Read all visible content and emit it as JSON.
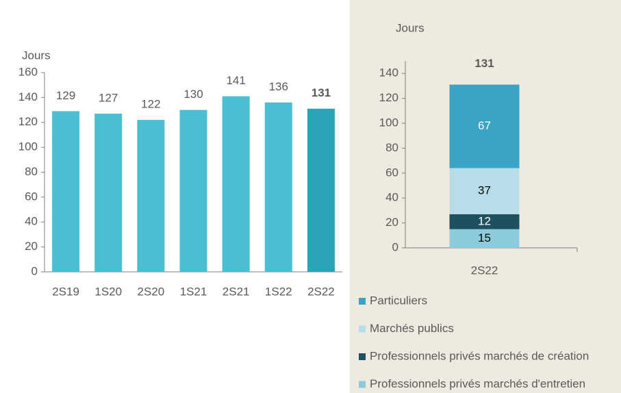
{
  "chart_data": [
    {
      "type": "bar",
      "y_label": "Jours",
      "categories": [
        "2S19",
        "1S20",
        "2S20",
        "1S21",
        "2S21",
        "1S22",
        "2S22"
      ],
      "values": [
        129,
        127,
        122,
        130,
        141,
        136,
        131
      ],
      "colors": [
        "#4bbfd2",
        "#4bbfd2",
        "#4bbfd2",
        "#4bbfd2",
        "#4bbfd2",
        "#4bbfd2",
        "#2ba5b5"
      ],
      "bold_labels": [
        false,
        false,
        false,
        false,
        false,
        false,
        true
      ],
      "ylim": [
        0,
        160
      ],
      "yticks": [
        0,
        20,
        40,
        60,
        80,
        100,
        120,
        140,
        160
      ]
    },
    {
      "type": "stacked_bar",
      "y_label": "Jours",
      "categories": [
        "2S22"
      ],
      "total": 131,
      "series": [
        {
          "name": "Professionnels privés marchés d'entretien",
          "color": "#8ccbdc",
          "label_color": "#000000",
          "values": [
            15
          ]
        },
        {
          "name": "Professionnels privés marchés de création",
          "color": "#1f5060",
          "label_color": "#ffffff",
          "values": [
            12
          ]
        },
        {
          "name": "Marchés publics",
          "color": "#b8dde8",
          "label_color": "#000000",
          "values": [
            37
          ]
        },
        {
          "name": "Particuliers",
          "color": "#3ba3c4",
          "label_color": "#ffffff",
          "values": [
            67
          ]
        }
      ],
      "ylim": [
        0,
        150
      ],
      "yticks": [
        0,
        20,
        40,
        60,
        80,
        100,
        120,
        140
      ]
    }
  ]
}
